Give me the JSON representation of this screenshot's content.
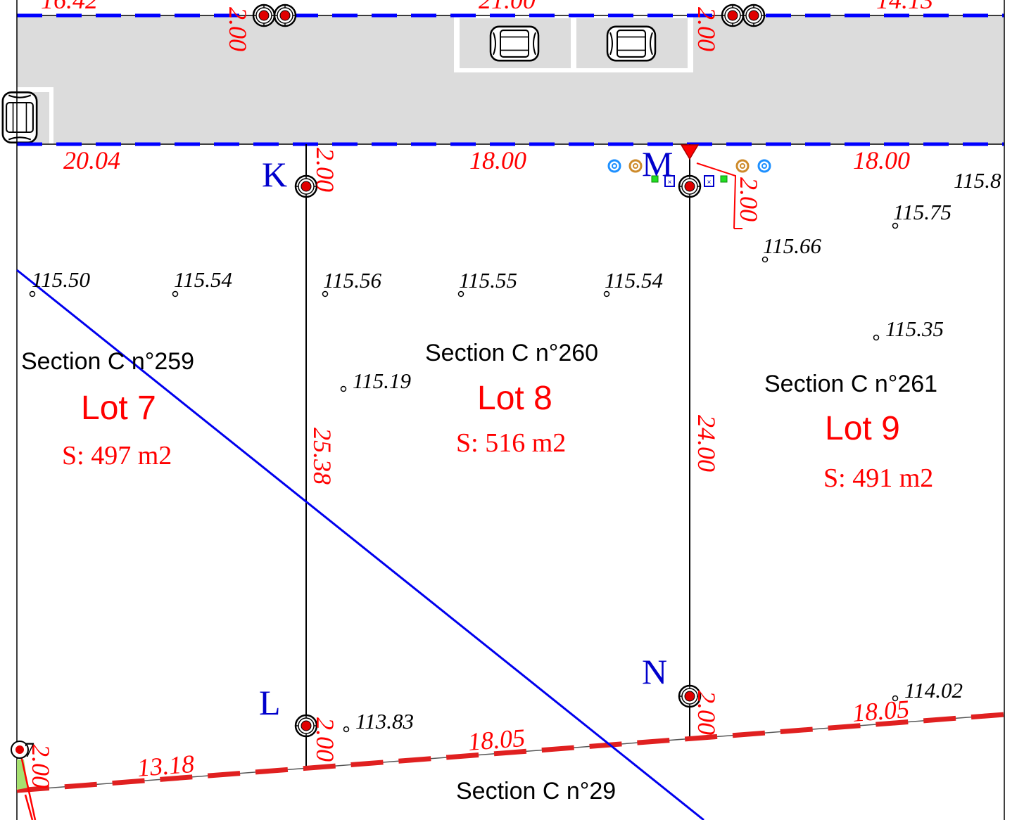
{
  "plan": {
    "top_dimensions": [
      "16.42",
      "21.00",
      "14.13",
      "2.00",
      "2.00"
    ],
    "front_dimensions": [
      "20.04",
      "18.00",
      "18.00"
    ],
    "side_dimensions": [
      "2.00",
      "2.00",
      "25.38",
      "24.00",
      "2.00",
      "2.00",
      "2.00"
    ],
    "rear_dimensions": [
      "13.18",
      "18.05",
      "18.05"
    ],
    "points": [
      "K",
      "L",
      "M",
      "N"
    ],
    "partial_point_label": "7",
    "elevations": [
      {
        "value": "115.50"
      },
      {
        "value": "115.54"
      },
      {
        "value": "115.56"
      },
      {
        "value": "115.55"
      },
      {
        "value": "115.54"
      },
      {
        "value": "115.66"
      },
      {
        "value": "115.75"
      },
      {
        "value": "115.8"
      },
      {
        "value": "115.35"
      },
      {
        "value": "115.19"
      },
      {
        "value": "113.83"
      },
      {
        "value": "114.02"
      }
    ],
    "parcels": [
      {
        "section": "Section C n°259",
        "lot": "Lot 7",
        "area": "S: 497 m2"
      },
      {
        "section": "Section C n°260",
        "lot": "Lot 8",
        "area": "S: 516 m2"
      },
      {
        "section": "Section C n°261",
        "lot": "Lot 9",
        "area": "S: 491 m2"
      }
    ],
    "south_section": "Section C n°29",
    "colors": {
      "dimension": "#ff0000",
      "point_label": "#0000cc",
      "road": "#dcdcdc",
      "road_edge": "#0000ff",
      "rear_boundary": "#e02020",
      "diagonal": "#0000ee"
    }
  }
}
